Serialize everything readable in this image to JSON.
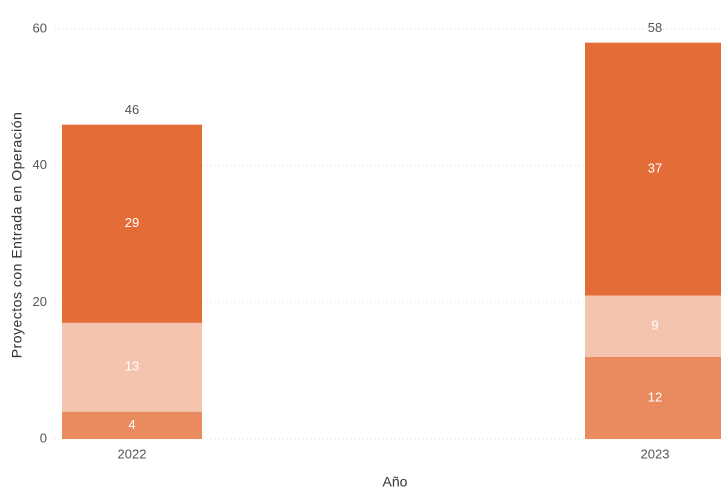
{
  "chart_data": {
    "type": "stacked_bar",
    "x_label": "Año",
    "y_label": "Proyectos con Entrada en Operación",
    "categories": [
      "2022",
      "2023"
    ],
    "series": [
      {
        "color": "#EA8A5F",
        "values": [
          4,
          12
        ]
      },
      {
        "color": "#F4C4AE",
        "values": [
          13,
          9
        ]
      },
      {
        "color": "#E46C37",
        "values": [
          29,
          37
        ]
      }
    ],
    "totals": [
      46,
      58
    ],
    "ylim": [
      0,
      60
    ],
    "yticks": [
      0,
      20,
      40,
      60
    ],
    "grid": true
  }
}
